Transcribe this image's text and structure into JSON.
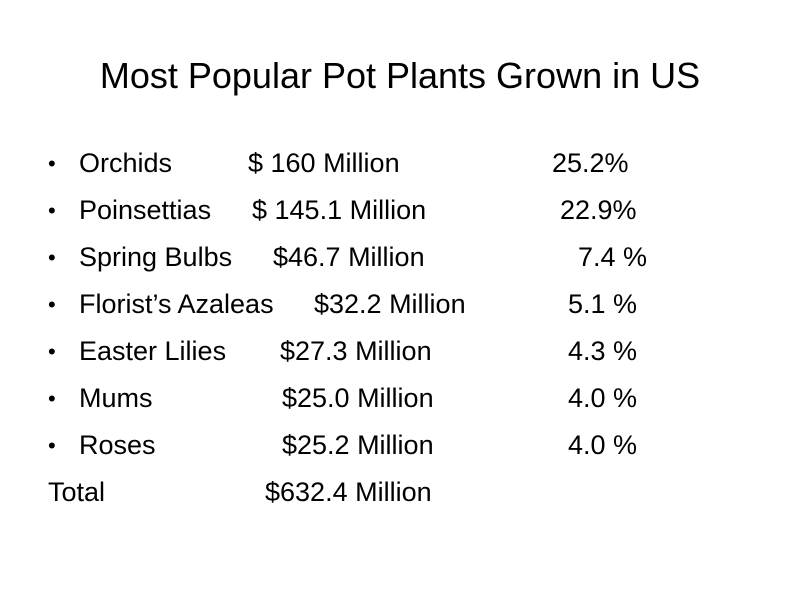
{
  "slide": {
    "title": "Most Popular Pot Plants Grown in US",
    "items": [
      {
        "name": "Orchids",
        "amount": "$ 160 Million",
        "percent": "25.2%"
      },
      {
        "name": "Poinsettias",
        "amount": "$ 145.1 Million",
        "percent": "22.9%"
      },
      {
        "name": "Spring Bulbs",
        "amount": "$46.7 Million",
        "percent": "7.4 %"
      },
      {
        "name": "Florist’s Azaleas",
        "amount": "$32.2 Million",
        "percent": "5.1 %"
      },
      {
        "name": "Easter Lilies",
        "amount": "$27.3 Million",
        "percent": "4.3 %"
      },
      {
        "name": "Mums",
        "amount": "$25.0 Million",
        "percent": "4.0 %"
      },
      {
        "name": "Roses",
        "amount": "$25.2 Million",
        "percent": "4.0 %"
      }
    ],
    "total": {
      "label": "Total",
      "amount": "$632.4 Million"
    },
    "bullet_glyph": "•"
  }
}
